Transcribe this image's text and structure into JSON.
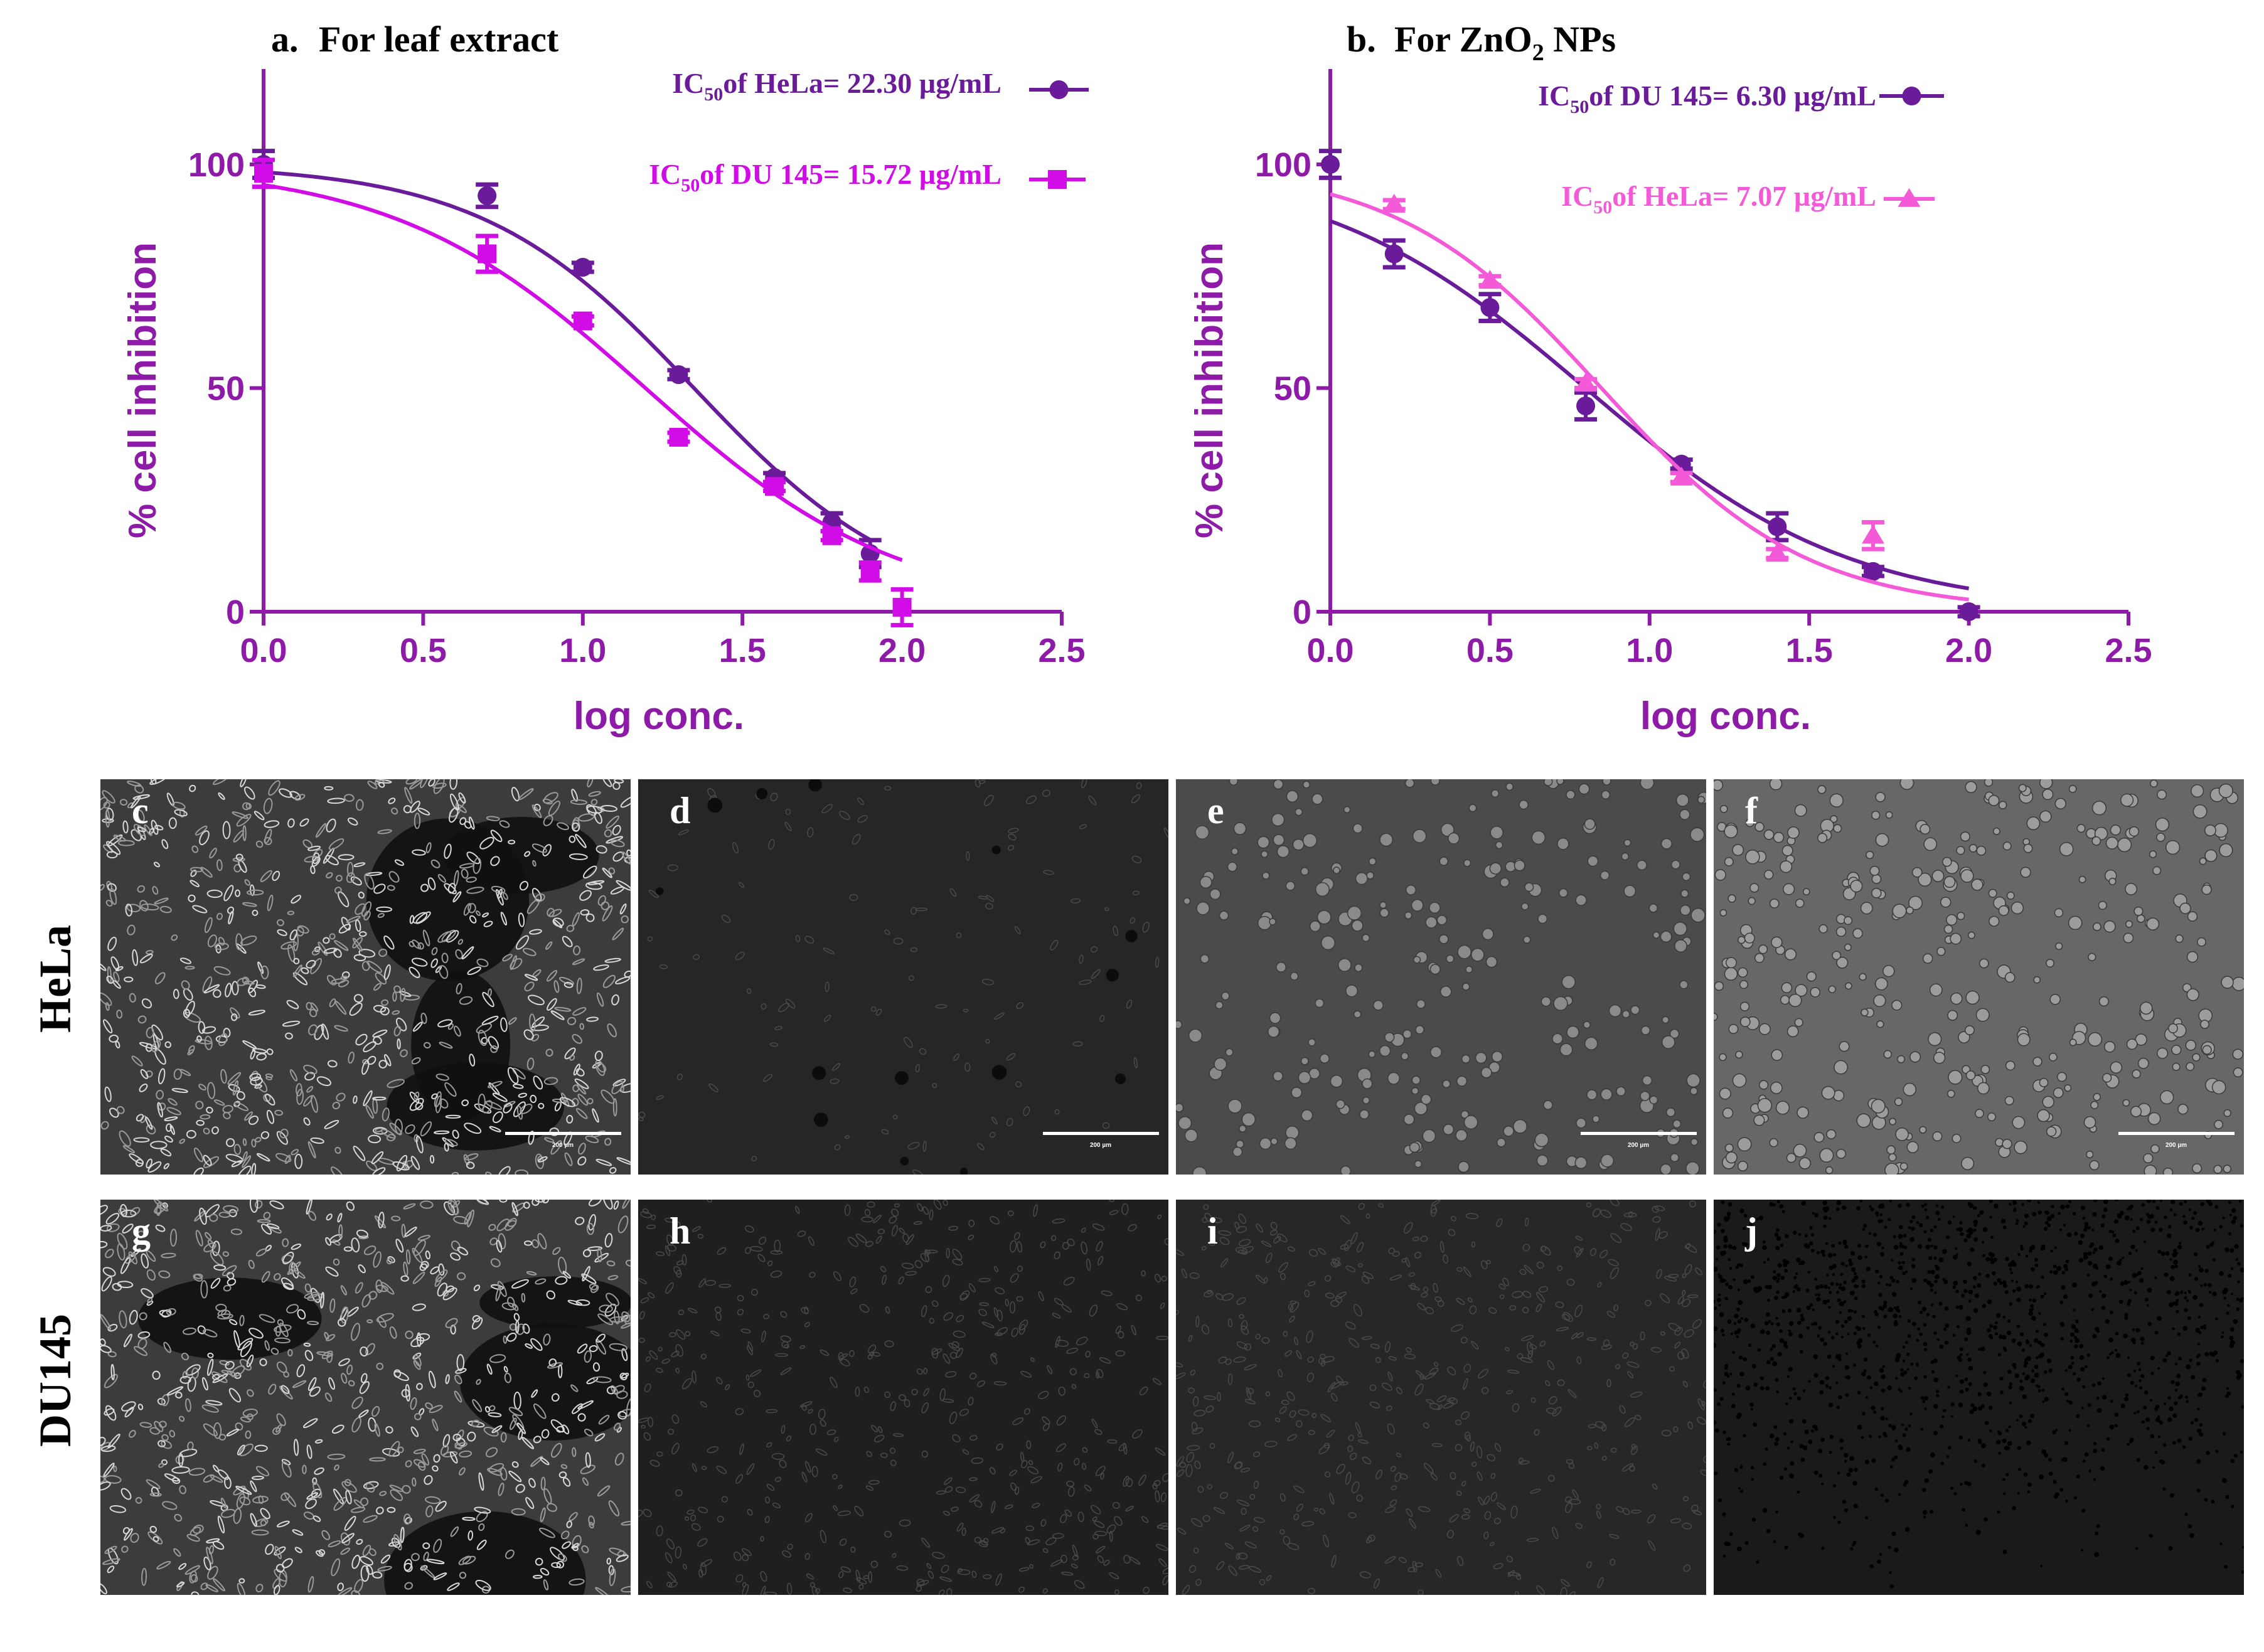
{
  "colors": {
    "axis": "#8e1ba8",
    "series_dark": "#6a1b9a",
    "series_magenta": "#d10ce6",
    "series_pink": "#f45ad8",
    "panel_label": "#000000"
  },
  "chart_data": [
    {
      "panel": "a.",
      "title": "For leaf extract",
      "type": "scatter",
      "xlabel": "log conc.",
      "ylabel": "% cell inhibition",
      "xlim": [
        0,
        2.5
      ],
      "ylim": [
        0,
        100
      ],
      "xticks": [
        "0.0",
        "0.5",
        "1.0",
        "1.5",
        "2.0",
        "2.5"
      ],
      "yticks": [
        "0",
        "50",
        "100"
      ],
      "legend": [
        {
          "prefix": "IC",
          "sub": "50",
          "text": "of HeLa= 22.30 µg/mL"
        },
        {
          "prefix": "IC",
          "sub": "50",
          "text": "of DU 145= 15.72 µg/mL"
        }
      ],
      "series": [
        {
          "marker": "circle",
          "color": "#6a1b9a",
          "x": [
            0,
            0.7,
            1.0,
            1.3,
            1.6,
            1.78,
            1.9
          ],
          "y": [
            100,
            93,
            77,
            53,
            30,
            20,
            13
          ],
          "err": [
            3,
            2.5,
            1,
            1,
            1,
            2,
            3
          ],
          "fit": {
            "top": 100,
            "bottom": 0,
            "logIC50": 1.348,
            "hill": 1.3
          }
        },
        {
          "marker": "square",
          "color": "#d10ce6",
          "x": [
            0,
            0.7,
            1.0,
            1.3,
            1.6,
            1.78,
            1.9,
            2.0
          ],
          "y": [
            98,
            80,
            65,
            39,
            28,
            17,
            9,
            1
          ],
          "err": [
            3,
            4,
            1,
            1,
            1,
            1,
            2,
            4
          ],
          "fit": {
            "top": 100,
            "bottom": 0,
            "logIC50": 1.196,
            "hill": 1.1
          }
        }
      ]
    },
    {
      "panel": "b.",
      "title": "For ZnO",
      "title_sub": "2",
      "title_tail": "NPs",
      "type": "scatter",
      "xlabel": "log conc.",
      "ylabel": "% cell inhibition",
      "xlim": [
        0,
        2.5
      ],
      "ylim": [
        0,
        100
      ],
      "xticks": [
        "0.0",
        "0.5",
        "1.0",
        "1.5",
        "2.0",
        "2.5"
      ],
      "yticks": [
        "0",
        "50",
        "100"
      ],
      "legend": [
        {
          "prefix": "IC",
          "sub": "50",
          "text": "of DU 145= 6.30 µg/mL"
        },
        {
          "prefix": "IC",
          "sub": "50",
          "text": "of HeLa= 7.07 µg/mL"
        }
      ],
      "series": [
        {
          "marker": "circle",
          "color": "#6a1b9a",
          "x": [
            0,
            0.2,
            0.5,
            0.8,
            1.1,
            1.4,
            1.7,
            2.0
          ],
          "y": [
            100,
            80,
            68,
            46,
            33,
            19,
            9,
            0
          ],
          "err": [
            3,
            3,
            3,
            3,
            1,
            3,
            1,
            1
          ],
          "fit": {
            "top": 100,
            "bottom": 0,
            "logIC50": 0.799,
            "hill": 1.05
          }
        },
        {
          "marker": "triangle",
          "color": "#f45ad8",
          "x": [
            0.2,
            0.5,
            0.8,
            1.1,
            1.4,
            1.7
          ],
          "y": [
            91,
            74,
            51,
            30,
            13,
            17
          ],
          "err": [
            1,
            1,
            1,
            1,
            1,
            3
          ],
          "fit": {
            "top": 100,
            "bottom": 0,
            "logIC50": 0.849,
            "hill": 1.35
          }
        }
      ]
    }
  ],
  "micrographs": {
    "row_labels": [
      "HeLa",
      "DU145"
    ],
    "panels": [
      {
        "label": "c",
        "cell": "HeLa",
        "style": "confluent-bright",
        "scale_bar": "200 µm"
      },
      {
        "label": "d",
        "cell": "HeLa",
        "style": "dark-sparse",
        "scale_bar": "200 µm"
      },
      {
        "label": "e",
        "cell": "HeLa",
        "style": "round-cells",
        "scale_bar": "200 µm"
      },
      {
        "label": "f",
        "cell": "HeLa",
        "style": "round-cells-light",
        "scale_bar": "200 µm"
      },
      {
        "label": "g",
        "cell": "DU145",
        "style": "confluent-bright",
        "scale_bar": ""
      },
      {
        "label": "h",
        "cell": "DU145",
        "style": "dark-dense",
        "scale_bar": ""
      },
      {
        "label": "i",
        "cell": "DU145",
        "style": "dark-patchy",
        "scale_bar": ""
      },
      {
        "label": "j",
        "cell": "DU145",
        "style": "black-dots",
        "scale_bar": ""
      }
    ]
  }
}
